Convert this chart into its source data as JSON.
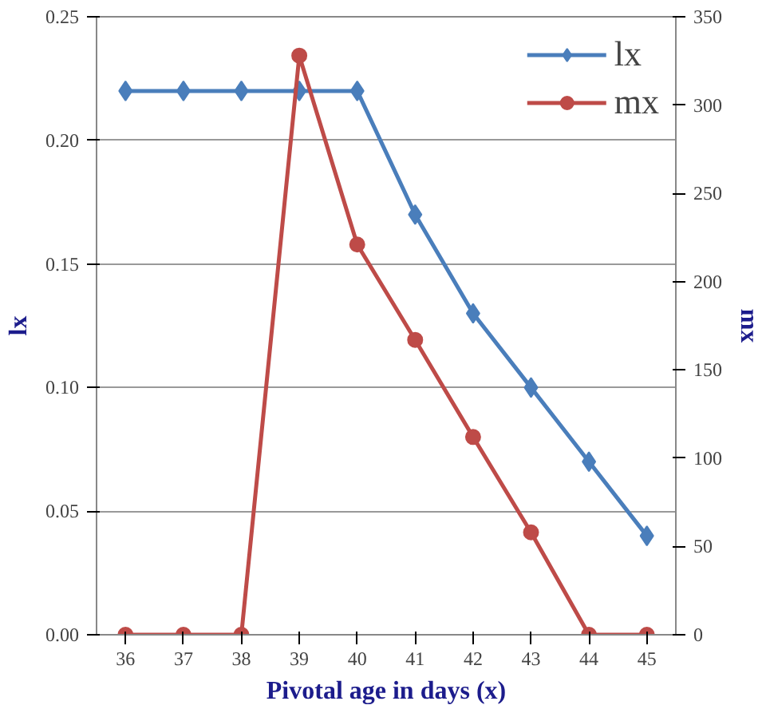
{
  "chart_data": {
    "type": "line",
    "xlabel": "Pivotal age in days (x)",
    "ylabel": "lx",
    "y2label": "mx",
    "categories": [
      "36",
      "37",
      "38",
      "39",
      "40",
      "41",
      "42",
      "43",
      "44",
      "45"
    ],
    "series": [
      {
        "name": "lx",
        "color": "#4a7ebb",
        "marker": "diamond",
        "values": [
          0.22,
          0.22,
          0.22,
          0.22,
          0.22,
          0.17,
          0.13,
          0.1,
          0.07,
          0.04
        ]
      },
      {
        "name": "mx",
        "color": "#be4b48",
        "marker": "circle",
        "axis": "y2",
        "values": [
          0,
          0,
          0,
          328,
          221,
          167,
          112,
          58,
          0,
          0
        ]
      }
    ],
    "ylim": [
      0,
      0.25
    ],
    "yticks": [
      {
        "value": 0,
        "label": "0.00"
      },
      {
        "value": 0.05,
        "label": "0.05"
      },
      {
        "value": 0.1,
        "label": "0.10"
      },
      {
        "value": 0.15,
        "label": "0.15"
      },
      {
        "value": 0.2,
        "label": "0.20"
      },
      {
        "value": 0.25,
        "label": "0.25"
      }
    ],
    "y2lim": [
      0,
      350
    ],
    "y2ticks": [
      0,
      50,
      100,
      150,
      200,
      250,
      300,
      350
    ],
    "grid": "y",
    "legend": "top right",
    "line_style": "solid"
  }
}
